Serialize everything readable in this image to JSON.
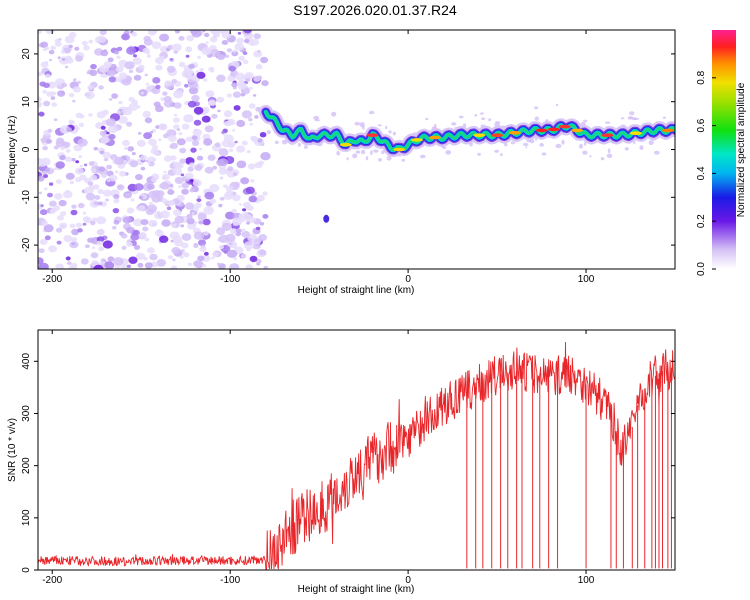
{
  "figure_title": "S197.2026.020.01.37.R24",
  "colors": {
    "snr_line": "#e8262a",
    "noise_dots": "#9b59f5",
    "axis": "#000000"
  },
  "chart_data": [
    {
      "type": "heatmap",
      "title": "S197.2026.020.01.37.R24",
      "xlabel": "Height of straight line (km)",
      "ylabel": "Frequency (Hz)",
      "xlim": [
        -208,
        150
      ],
      "ylim": [
        -25,
        25
      ],
      "xticks": [
        -200,
        -100,
        0,
        100
      ],
      "xtick_labels": [
        "-200",
        "-100",
        "0",
        "100"
      ],
      "yticks": [
        -20,
        -10,
        0,
        10,
        20
      ],
      "ytick_labels": [
        "-20",
        "-10",
        "0",
        "10",
        "20"
      ],
      "colorbar": {
        "label": "Normalized spectral amplitude",
        "range": [
          0,
          1
        ],
        "ticks": [
          0.0,
          0.2,
          0.4,
          0.6,
          0.8
        ],
        "tick_labels": [
          "0.0",
          "0.2",
          "0.4",
          "0.6",
          "0.8"
        ]
      },
      "noise_region_x": [
        -208,
        -80
      ],
      "signal_track": {
        "x": [
          -80,
          -75,
          -70,
          -65,
          -60,
          -55,
          -50,
          -45,
          -40,
          -35,
          -30,
          -25,
          -20,
          -15,
          -10,
          -5,
          0,
          5,
          10,
          20,
          30,
          40,
          50,
          60,
          70,
          80,
          90,
          95,
          100,
          110,
          120,
          130,
          140,
          150
        ],
        "y": [
          8,
          6,
          4,
          3,
          4,
          2,
          3,
          3,
          3,
          1,
          2,
          1.5,
          3,
          2,
          0.5,
          0,
          1,
          2,
          2.5,
          2.5,
          3,
          3,
          3,
          3.5,
          4,
          4,
          5,
          4,
          3,
          3,
          3,
          3.5,
          4,
          4
        ]
      }
    },
    {
      "type": "line",
      "xlabel": "Height of straight line (km)",
      "ylabel": "SNR (10 * v/v)",
      "xlim": [
        -208,
        150
      ],
      "ylim": [
        0,
        460
      ],
      "xticks": [
        -200,
        -100,
        0,
        100
      ],
      "xtick_labels": [
        "-200",
        "-100",
        "0",
        "100"
      ],
      "yticks": [
        0,
        100,
        200,
        300,
        400
      ],
      "ytick_labels": [
        "0",
        "100",
        "200",
        "300",
        "400"
      ],
      "series": [
        {
          "name": "SNR",
          "x": [
            -208,
            -190,
            -170,
            -150,
            -130,
            -110,
            -90,
            -80,
            -75,
            -70,
            -65,
            -60,
            -55,
            -50,
            -45,
            -40,
            -35,
            -30,
            -25,
            -20,
            -15,
            -10,
            -5,
            0,
            5,
            10,
            15,
            20,
            25,
            30,
            35,
            40,
            45,
            50,
            55,
            60,
            65,
            70,
            75,
            80,
            85,
            90,
            95,
            100,
            105,
            110,
            115,
            120,
            125,
            130,
            135,
            140,
            145,
            150
          ],
          "y": [
            18,
            18,
            17,
            17,
            18,
            18,
            18,
            22,
            35,
            60,
            80,
            95,
            105,
            115,
            130,
            145,
            165,
            185,
            200,
            210,
            225,
            235,
            245,
            255,
            270,
            285,
            300,
            315,
            325,
            335,
            345,
            355,
            365,
            372,
            378,
            382,
            380,
            378,
            375,
            372,
            374,
            378,
            370,
            355,
            340,
            320,
            290,
            230,
            260,
            330,
            360,
            375,
            385,
            390
          ]
        }
      ],
      "dropouts_x": [
        33,
        38,
        42,
        47,
        52,
        56,
        61,
        64,
        70,
        74,
        79,
        84,
        100,
        114,
        117,
        121,
        126,
        129,
        133,
        137,
        139,
        141,
        143,
        146,
        148
      ]
    }
  ]
}
